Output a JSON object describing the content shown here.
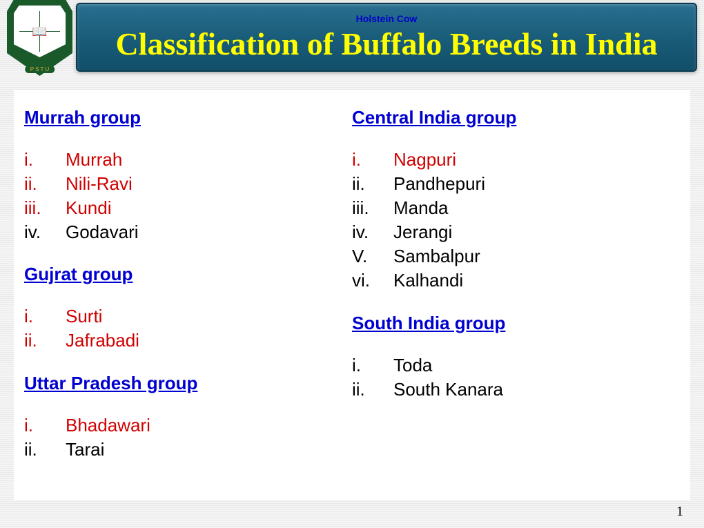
{
  "header": {
    "smallText": "Holstein Cow",
    "title": "Classification of Buffalo Breeds in India",
    "logoBanner": "P S T U"
  },
  "leftColumn": [
    {
      "title": "Murrah group",
      "items": [
        {
          "roman": "i.",
          "name": "Murrah",
          "color": "red"
        },
        {
          "roman": "ii.",
          "name": "Nili-Ravi",
          "color": "red"
        },
        {
          "roman": "iii.",
          "name": "Kundi",
          "color": "red"
        },
        {
          "roman": "iv.",
          "name": "Godavari",
          "color": "black"
        }
      ]
    },
    {
      "title": "Gujrat group",
      "items": [
        {
          "roman": "i.",
          "name": "Surti",
          "color": "red"
        },
        {
          "roman": "ii.",
          "name": "Jafrabadi",
          "color": "red"
        }
      ]
    },
    {
      "title": "Uttar Pradesh group",
      "items": [
        {
          "roman": "i.",
          "name": "Bhadawari",
          "color": "red"
        },
        {
          "roman": "ii.",
          "name": "Tarai",
          "color": "black"
        }
      ]
    }
  ],
  "rightColumn": [
    {
      "title": "Central India group",
      "items": [
        {
          "roman": "i.",
          "name": "Nagpuri",
          "color": "red"
        },
        {
          "roman": "ii.",
          "name": "Pandhepuri",
          "color": "black"
        },
        {
          "roman": "iii.",
          "name": "Manda",
          "color": "black"
        },
        {
          "roman": "iv.",
          "name": "Jerangi",
          "color": "black"
        },
        {
          "roman": "V.",
          "name": "Sambalpur",
          "color": "black"
        },
        {
          "roman": "vi.",
          "name": "Kalhandi",
          "color": "black"
        }
      ]
    },
    {
      "title": "South India group",
      "items": [
        {
          "roman": "i.",
          "name": "Toda",
          "color": "black"
        },
        {
          "roman": "ii.",
          "name": "South Kanara",
          "color": "black"
        }
      ]
    }
  ],
  "pageNumber": "1",
  "colors": {
    "headerBg": "#195d7a",
    "titleColor": "#ffff00",
    "groupTitleColor": "#0000d0",
    "redItem": "#d00000",
    "blackItem": "#000000",
    "bodyBg": "#f5f5f5",
    "contentBg": "#ffffff"
  },
  "typography": {
    "titleFontSize": 46,
    "groupTitleFontSize": 26,
    "itemFontSize": 26,
    "titleFontFamily": "Times New Roman",
    "bodyFontFamily": "Arial"
  }
}
